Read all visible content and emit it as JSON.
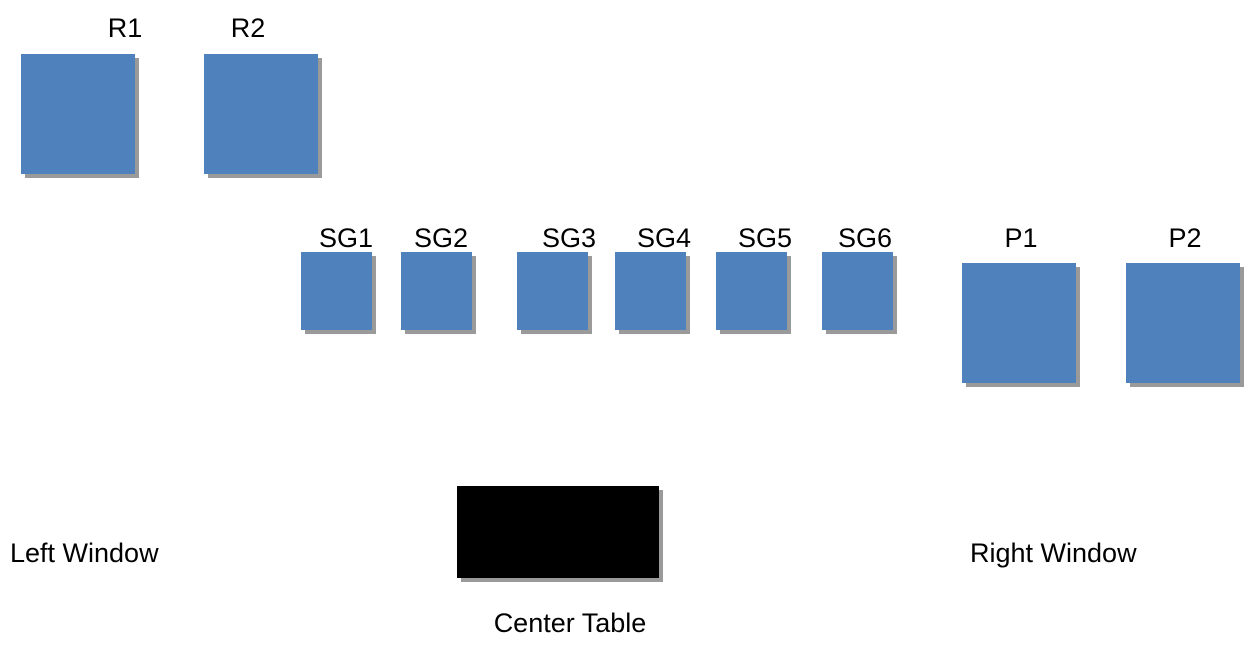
{
  "colors": {
    "seat_fill": "#4f81bd",
    "table_fill": "#000000",
    "shadow": "#9a9a9a",
    "background": "#ffffff"
  },
  "seats": {
    "r1": "R1",
    "r2": "R2",
    "sg1": "SG1",
    "sg2": "SG2",
    "sg3": "SG3",
    "sg4": "SG4",
    "sg5": "SG5",
    "sg6": "SG6",
    "p1": "P1",
    "p2": "P2"
  },
  "landmarks": {
    "left_window": "Left Window",
    "right_window": "Right Window",
    "center_table": "Center Table"
  }
}
